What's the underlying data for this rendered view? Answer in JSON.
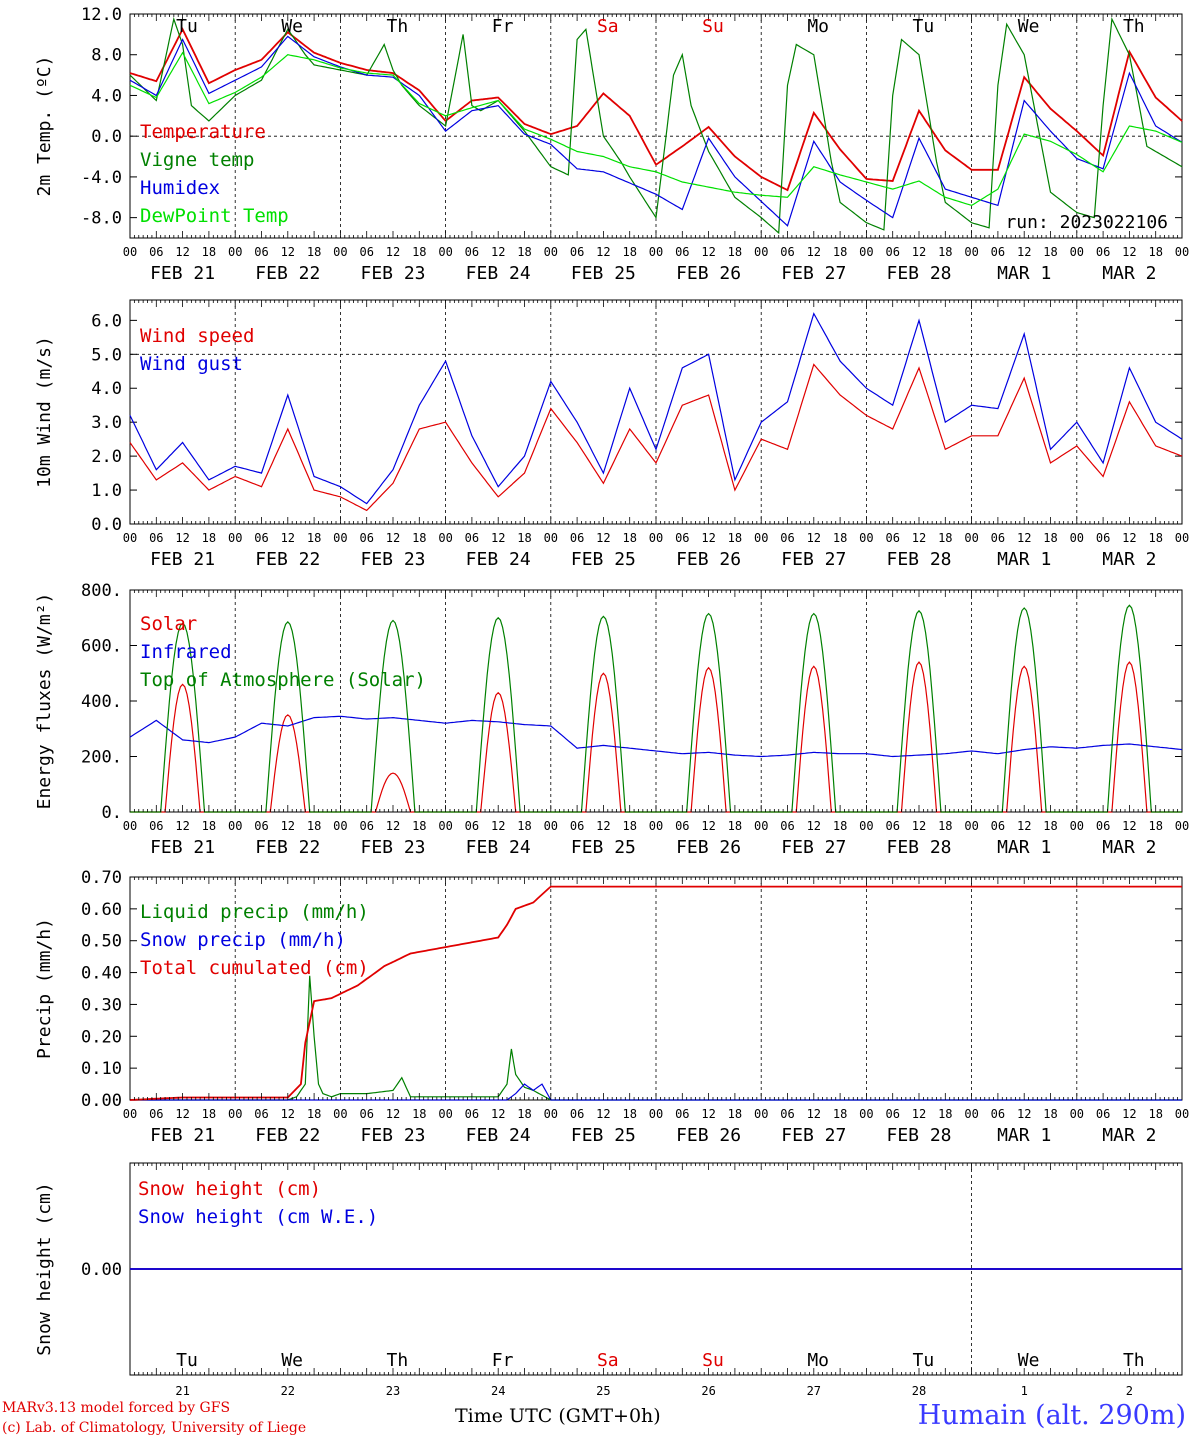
{
  "days": [
    "FEB 21",
    "FEB 22",
    "FEB 23",
    "FEB 24",
    "FEB 25",
    "FEB 26",
    "FEB 27",
    "FEB 28",
    "MAR  1",
    "MAR  2"
  ],
  "weekdays": [
    "Tu",
    "We",
    "Th",
    "Fr",
    "Sa",
    "Su",
    "Mo",
    "Tu",
    "We",
    "Th"
  ],
  "weekday_colors": [
    "#000",
    "#000",
    "#000",
    "#000",
    "#e00000",
    "#e00000",
    "#000",
    "#000",
    "#000",
    "#000"
  ],
  "day_numbers": [
    "21",
    "22",
    "23",
    "24",
    "25",
    "26",
    "27",
    "28",
    "1",
    "2"
  ],
  "hour_ticks": [
    "00",
    "06",
    "12",
    "18"
  ],
  "final_tick": "00",
  "run_label": "run: 2023022106",
  "footer": {
    "credit1": "MARv3.13 model forced by GFS",
    "credit2": "(c) Lab. of Climatology, University of Liege",
    "time_label": "Time UTC (GMT+0h)",
    "station": "Humain (alt. 290m)"
  },
  "chart_data": [
    {
      "type": "line",
      "ylabel": "2m Temp. (ºC)",
      "ylim": [
        -10,
        12
      ],
      "yticks": [
        "12.0",
        "8.0",
        "4.0",
        "0.0",
        "-4.0",
        "-8.0"
      ],
      "ytick_values": [
        12,
        8,
        4,
        0,
        -4,
        -8
      ],
      "x_unit": "hours from FEB 21 00 UTC",
      "reference_line": 0,
      "series": [
        {
          "name": "Temperature",
          "color": "#e00000",
          "x": [
            0,
            6,
            12,
            18,
            24,
            30,
            36,
            42,
            48,
            54,
            60,
            66,
            72,
            78,
            84,
            90,
            96,
            102,
            108,
            114,
            120,
            126,
            132,
            138,
            144,
            150,
            156,
            162,
            168,
            174,
            180,
            186,
            192,
            198,
            204,
            210,
            216,
            222,
            228,
            234,
            240
          ],
          "values": [
            6.2,
            5.4,
            10.5,
            5.2,
            6.5,
            7.5,
            10.2,
            8.2,
            7.2,
            6.5,
            6.2,
            4.5,
            1.5,
            3.5,
            3.8,
            1.2,
            0.2,
            1.0,
            4.2,
            2.0,
            -2.8,
            -1.0,
            0.9,
            -2.0,
            -4.0,
            -5.3,
            2.3,
            -1.3,
            -4.2,
            -4.4,
            2.5,
            -1.4,
            -3.3,
            -3.3,
            5.8,
            2.7,
            0.5,
            -1.9,
            8.3,
            3.8,
            1.5
          ]
        },
        {
          "name": "Vigne temp",
          "color": "#008000",
          "x": [
            0,
            6,
            10,
            12,
            14,
            18,
            24,
            30,
            36,
            40,
            42,
            48,
            54,
            58,
            60,
            62,
            66,
            72,
            76,
            78,
            80,
            84,
            90,
            96,
            100,
            102,
            104,
            108,
            112,
            114,
            120,
            124,
            126,
            128,
            132,
            138,
            144,
            148,
            150,
            152,
            156,
            160,
            162,
            168,
            172,
            174,
            176,
            180,
            184,
            186,
            192,
            196,
            198,
            200,
            204,
            208,
            210,
            216,
            220,
            222,
            224,
            228,
            232,
            234,
            240
          ],
          "values": [
            6.0,
            3.5,
            11.5,
            9.0,
            3.0,
            1.5,
            4.0,
            5.5,
            10.5,
            8.0,
            7.0,
            6.5,
            6.0,
            9.0,
            6.5,
            5.0,
            3.0,
            1.0,
            10.0,
            3.0,
            2.5,
            3.5,
            0.5,
            -3.0,
            -3.8,
            9.5,
            10.5,
            0.0,
            -2.5,
            -4.0,
            -8.0,
            6.0,
            8.0,
            3.0,
            -1.5,
            -6.0,
            -8.0,
            -9.5,
            5.0,
            9.0,
            8.0,
            -2.5,
            -6.5,
            -8.5,
            -9.2,
            4.0,
            9.5,
            8.0,
            -2.5,
            -6.5,
            -8.5,
            -9.0,
            5.0,
            11.0,
            8.0,
            -1.0,
            -5.5,
            -7.5,
            -8.0,
            3.0,
            11.5,
            8.0,
            -1.0,
            -1.5,
            -3.0
          ]
        },
        {
          "name": "Humidex",
          "color": "#0000e0",
          "x": [
            0,
            6,
            12,
            18,
            24,
            30,
            36,
            42,
            48,
            54,
            60,
            66,
            72,
            78,
            84,
            90,
            96,
            102,
            108,
            114,
            120,
            126,
            132,
            138,
            144,
            150,
            156,
            162,
            168,
            174,
            180,
            186,
            192,
            198,
            204,
            210,
            216,
            222,
            228,
            234,
            240
          ],
          "values": [
            5.5,
            4.0,
            9.5,
            4.2,
            5.5,
            6.8,
            9.8,
            7.8,
            6.8,
            6.0,
            5.8,
            4.0,
            0.5,
            2.5,
            3.0,
            0.2,
            -0.8,
            -3.2,
            -3.5,
            -4.6,
            -5.7,
            -7.2,
            -0.2,
            -4.0,
            -6.4,
            -8.8,
            -0.5,
            -4.5,
            -6.3,
            -8.0,
            -0.2,
            -5.2,
            -6.0,
            -6.8,
            3.5,
            0.5,
            -2.2,
            -3.2,
            6.2,
            1.0,
            -0.6
          ]
        },
        {
          "name": "DewPoint Temp",
          "color": "#00e000",
          "x": [
            0,
            6,
            12,
            18,
            24,
            30,
            36,
            42,
            48,
            54,
            60,
            66,
            72,
            78,
            84,
            90,
            96,
            102,
            108,
            114,
            120,
            126,
            132,
            138,
            144,
            150,
            156,
            162,
            168,
            174,
            180,
            186,
            192,
            198,
            204,
            210,
            216,
            222,
            228,
            234,
            240
          ],
          "values": [
            5.0,
            3.8,
            8.2,
            3.2,
            4.3,
            5.8,
            8.0,
            7.5,
            6.7,
            6.2,
            6.0,
            3.2,
            2.0,
            2.8,
            3.5,
            0.7,
            -0.3,
            -1.5,
            -2.0,
            -3.0,
            -3.5,
            -4.5,
            -5.0,
            -5.5,
            -5.8,
            -6.0,
            -3.0,
            -3.8,
            -4.5,
            -5.2,
            -4.4,
            -6.0,
            -6.8,
            -5.2,
            0.2,
            -0.5,
            -1.8,
            -3.5,
            1.0,
            0.5,
            -0.6
          ]
        }
      ]
    },
    {
      "type": "line",
      "ylabel": "10m Wind (m/s)",
      "ylim": [
        0,
        6.6
      ],
      "yticks": [
        "6.0",
        "5.0",
        "4.0",
        "3.0",
        "2.0",
        "1.0",
        "0.0"
      ],
      "ytick_values": [
        6,
        5,
        4,
        3,
        2,
        1,
        0
      ],
      "x_unit": "hours from FEB 21 00 UTC",
      "reference_line": 5,
      "series": [
        {
          "name": "Wind speed",
          "color": "#e00000",
          "x": [
            0,
            6,
            12,
            18,
            24,
            30,
            36,
            42,
            48,
            54,
            60,
            66,
            72,
            78,
            84,
            90,
            96,
            102,
            108,
            114,
            120,
            126,
            132,
            138,
            144,
            150,
            156,
            162,
            168,
            174,
            180,
            186,
            192,
            198,
            204,
            210,
            216,
            222,
            228,
            234,
            240
          ],
          "values": [
            2.4,
            1.3,
            1.8,
            1.0,
            1.4,
            1.1,
            2.8,
            1.0,
            0.8,
            0.4,
            1.2,
            2.8,
            3.0,
            1.8,
            0.8,
            1.5,
            3.4,
            2.4,
            1.2,
            2.8,
            1.8,
            3.5,
            3.8,
            1.0,
            2.5,
            2.2,
            4.7,
            3.8,
            3.2,
            2.8,
            4.6,
            2.2,
            2.6,
            2.6,
            4.3,
            1.8,
            2.3,
            1.4,
            3.6,
            2.3,
            2.0
          ]
        },
        {
          "name": "Wind gust",
          "color": "#0000e0",
          "x": [
            0,
            6,
            12,
            18,
            24,
            30,
            36,
            42,
            48,
            54,
            60,
            66,
            72,
            78,
            84,
            90,
            96,
            102,
            108,
            114,
            120,
            126,
            132,
            138,
            144,
            150,
            156,
            162,
            168,
            174,
            180,
            186,
            192,
            198,
            204,
            210,
            216,
            222,
            228,
            234,
            240
          ],
          "values": [
            3.2,
            1.6,
            2.4,
            1.3,
            1.7,
            1.5,
            3.8,
            1.4,
            1.1,
            0.6,
            1.6,
            3.5,
            4.8,
            2.6,
            1.1,
            2.0,
            4.2,
            3.0,
            1.5,
            4.0,
            2.2,
            4.6,
            5.0,
            1.3,
            3.0,
            3.6,
            6.2,
            4.8,
            4.0,
            3.5,
            6.0,
            3.0,
            3.5,
            3.4,
            5.6,
            2.2,
            3.0,
            1.8,
            4.6,
            3.0,
            2.5
          ]
        }
      ]
    },
    {
      "type": "line",
      "ylabel": "Energy fluxes (W/m²)",
      "ylim": [
        0,
        800
      ],
      "yticks": [
        "800.",
        "600.",
        "400.",
        "200.",
        "0."
      ],
      "ytick_values": [
        800,
        600,
        400,
        200,
        0
      ],
      "x_unit": "hours from FEB 21 00 UTC",
      "series": [
        {
          "name": "Solar",
          "color": "#e00000",
          "peaks": [
            460,
            350,
            140,
            430,
            500,
            520,
            525,
            540,
            525,
            540
          ]
        },
        {
          "name": "Infrared",
          "color": "#0000e0",
          "x": [
            0,
            6,
            12,
            18,
            24,
            30,
            36,
            42,
            48,
            54,
            60,
            66,
            72,
            78,
            84,
            90,
            96,
            102,
            108,
            114,
            120,
            126,
            132,
            138,
            144,
            150,
            156,
            162,
            168,
            174,
            180,
            186,
            192,
            198,
            204,
            210,
            216,
            222,
            228,
            234,
            240
          ],
          "values": [
            270,
            330,
            260,
            250,
            270,
            320,
            310,
            340,
            345,
            335,
            340,
            330,
            320,
            330,
            325,
            315,
            310,
            230,
            240,
            230,
            220,
            210,
            215,
            205,
            200,
            205,
            215,
            210,
            210,
            200,
            205,
            210,
            220,
            210,
            225,
            235,
            230,
            240,
            245,
            235,
            225
          ]
        },
        {
          "name": "Top of Atmosphere (Solar)",
          "color": "#008000",
          "peaks": [
            680,
            685,
            690,
            700,
            705,
            715,
            715,
            725,
            735,
            745
          ]
        }
      ]
    },
    {
      "type": "line",
      "ylabel": "Precip (mm/h)",
      "ylim": [
        0,
        0.7
      ],
      "yticks": [
        "0.70",
        "0.60",
        "0.50",
        "0.40",
        "0.30",
        "0.20",
        "0.10",
        "0.00"
      ],
      "ytick_values": [
        0.7,
        0.6,
        0.5,
        0.4,
        0.3,
        0.2,
        0.1,
        0
      ],
      "x_unit": "hours from FEB 21 00 UTC",
      "series": [
        {
          "name": "Liquid precip (mm/h)",
          "color": "#008000",
          "x": [
            0,
            36,
            38,
            40,
            41,
            42,
            43,
            44,
            46,
            48,
            54,
            60,
            62,
            64,
            72,
            84,
            86,
            87,
            88,
            90,
            92,
            96,
            240
          ],
          "values": [
            0,
            0,
            0.01,
            0.05,
            0.39,
            0.2,
            0.05,
            0.02,
            0.01,
            0.02,
            0.02,
            0.03,
            0.07,
            0.01,
            0.01,
            0.01,
            0.05,
            0.16,
            0.08,
            0.04,
            0.03,
            0,
            0
          ]
        },
        {
          "name": "Snow precip (mm/h)",
          "color": "#0000e0",
          "x": [
            0,
            86,
            88,
            90,
            92,
            94,
            96,
            240
          ],
          "values": [
            0,
            0,
            0.02,
            0.05,
            0.03,
            0.05,
            0,
            0
          ]
        },
        {
          "name": "Total cumulated (cm)",
          "color": "#e00000",
          "x": [
            0,
            12,
            24,
            36,
            39,
            40,
            42,
            46,
            52,
            58,
            64,
            72,
            80,
            84,
            86,
            88,
            92,
            96,
            240
          ],
          "values": [
            0,
            0.008,
            0.008,
            0.008,
            0.05,
            0.18,
            0.31,
            0.32,
            0.36,
            0.42,
            0.46,
            0.48,
            0.5,
            0.51,
            0.55,
            0.6,
            0.62,
            0.67,
            0.67
          ]
        }
      ]
    },
    {
      "type": "line",
      "ylabel": "Snow height (cm)",
      "yticks": [
        "0.00"
      ],
      "ytick_values": [
        0
      ],
      "x_unit": "hours from FEB 21 00 UTC",
      "series": [
        {
          "name": "Snow height (cm)",
          "color": "#e00000",
          "x": [
            0,
            240
          ],
          "values": [
            0,
            0
          ]
        },
        {
          "name": "Snow height (cm W.E.)",
          "color": "#0000e0",
          "x": [
            0,
            240
          ],
          "values": [
            0,
            0
          ]
        }
      ]
    }
  ]
}
